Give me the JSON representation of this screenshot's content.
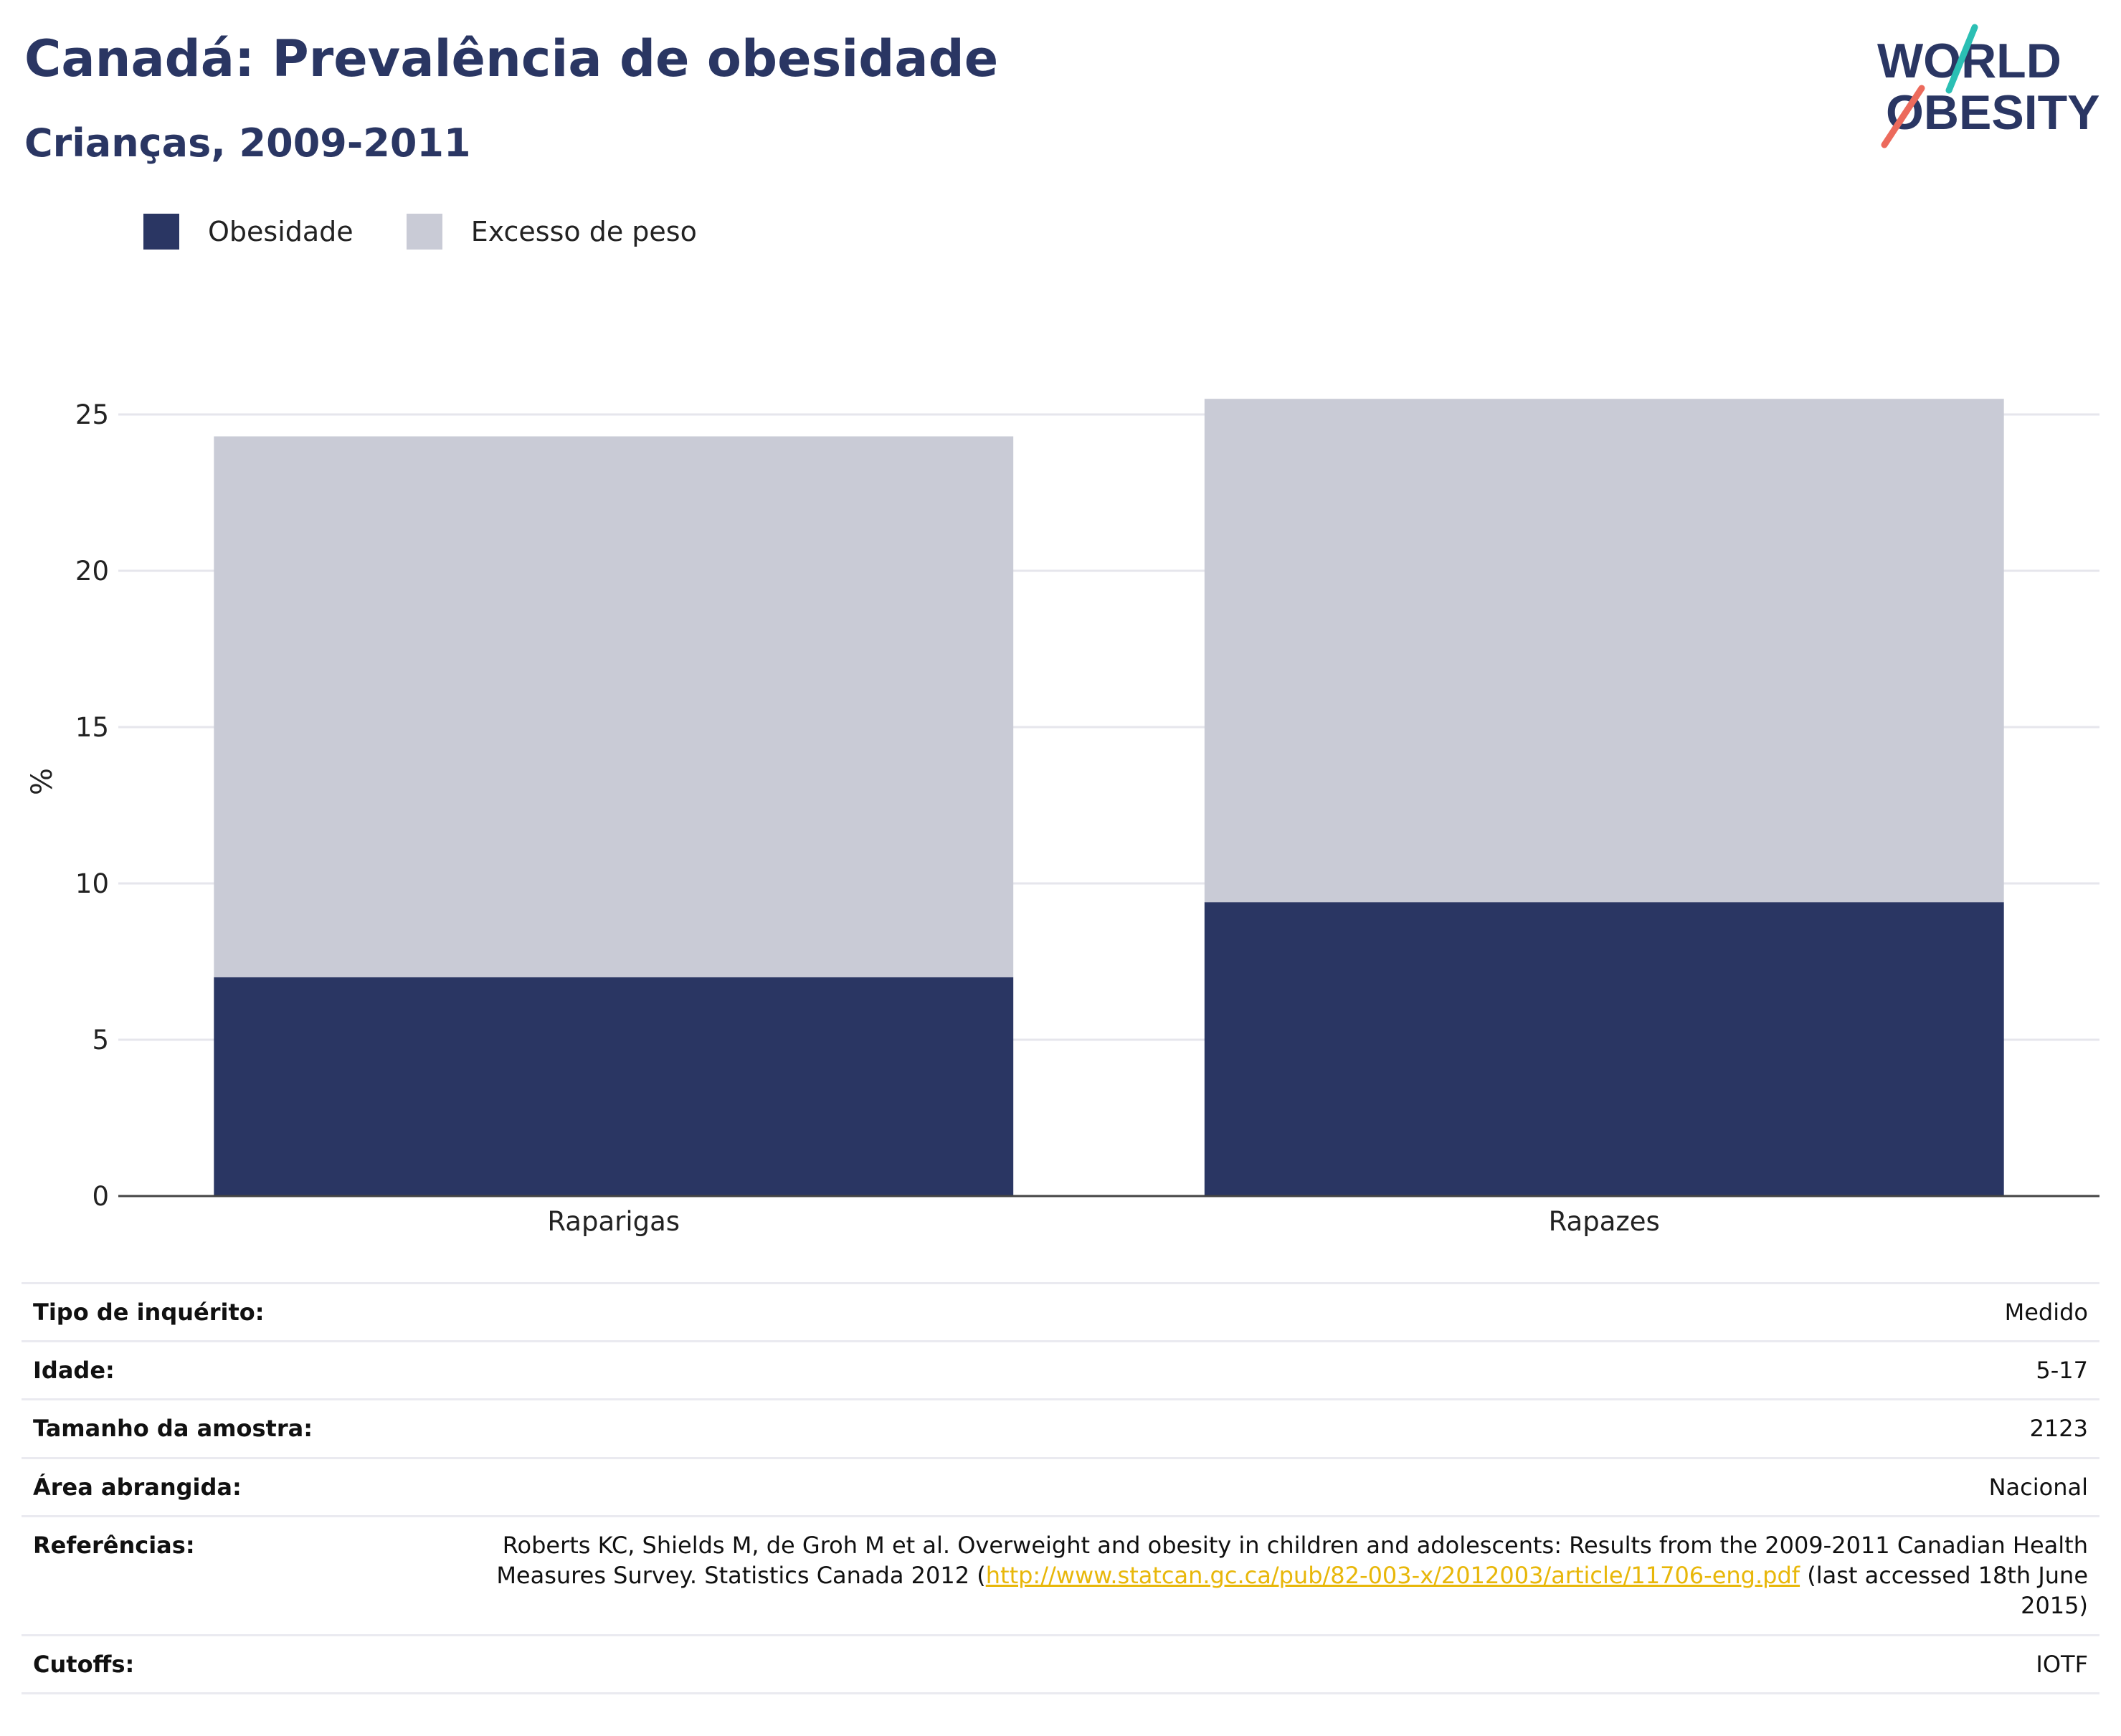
{
  "header": {
    "title": "Canadá: Prevalência de obesidade",
    "subtitle": "Crianças, 2009-2011"
  },
  "logo": {
    "line1": "WORLD",
    "line2": "OBESITY"
  },
  "colors": {
    "title": "#2a3663",
    "obesity": "#2a3663",
    "overweight": "#c9cbd6",
    "grid": "#e6e6ec",
    "link": "#e8b70a",
    "logo_teal": "#2bbfb4",
    "logo_coral": "#ec6a5c"
  },
  "chart_data": {
    "type": "bar",
    "stacked": true,
    "categories": [
      "Raparigas",
      "Rapazes"
    ],
    "series": [
      {
        "name": "Obesidade",
        "values": [
          7.0,
          9.4
        ]
      },
      {
        "name": "Excesso de peso",
        "values": [
          17.3,
          16.1
        ]
      }
    ],
    "ylabel": "%",
    "ylim": [
      0,
      26
    ],
    "yticks": [
      0,
      5,
      10,
      15,
      20,
      25
    ],
    "legend": "top-left",
    "grid": true
  },
  "info": {
    "rows": [
      {
        "key": "Tipo de inquérito:",
        "value": "Medido"
      },
      {
        "key": "Idade:",
        "value": "5-17"
      },
      {
        "key": "Tamanho da amostra:",
        "value": "2123"
      },
      {
        "key": "Área abrangida:",
        "value": "Nacional"
      }
    ],
    "references": {
      "key": "Referências:",
      "text_before": "Roberts KC, Shields M, de Groh M et al. Overweight and obesity in children and adolescents: Results from the 2009-2011 Canadian Health Measures Survey. Statistics Canada 2012 (",
      "link": "http://www.statcan.gc.ca/pub/82-003-x/2012003/article/11706-eng.pdf",
      "text_after": " (last accessed 18th June 2015)"
    },
    "cutoffs": {
      "key": "Cutoffs:",
      "value": "IOTF"
    }
  }
}
